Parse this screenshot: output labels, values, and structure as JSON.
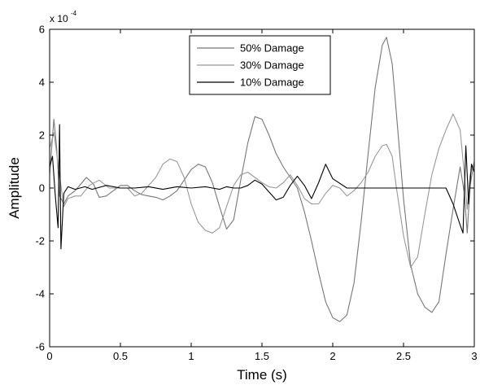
{
  "chart_data": {
    "type": "line",
    "xlabel": "Time (s)",
    "ylabel": "Amplitude",
    "xlim": [
      0,
      3
    ],
    "ylim": [
      -6,
      6
    ],
    "y_scale_base": "x 10",
    "y_scale_exponent": "-4",
    "xticks": [
      0,
      0.5,
      1,
      1.5,
      2,
      2.5,
      3
    ],
    "xtick_labels": [
      "0",
      "0.5",
      "1",
      "1.5",
      "2",
      "2.5",
      "3"
    ],
    "yticks": [
      -6,
      -4,
      -2,
      0,
      2,
      4,
      6
    ],
    "ytick_labels": [
      "-6",
      "-4",
      "-2",
      "0",
      "2",
      "4",
      "6"
    ],
    "legend_position": "top-center",
    "series": [
      {
        "name": "50% Damage",
        "color": "#777777",
        "x": [
          0,
          0.03,
          0.05,
          0.07,
          0.1,
          0.13,
          0.18,
          0.22,
          0.26,
          0.31,
          0.35,
          0.4,
          0.45,
          0.5,
          0.55,
          0.6,
          0.65,
          0.7,
          0.75,
          0.8,
          0.85,
          0.9,
          0.95,
          1.0,
          1.05,
          1.1,
          1.15,
          1.2,
          1.25,
          1.3,
          1.35,
          1.4,
          1.45,
          1.5,
          1.55,
          1.6,
          1.65,
          1.7,
          1.75,
          1.8,
          1.85,
          1.9,
          1.95,
          2.0,
          2.05,
          2.1,
          2.15,
          2.2,
          2.25,
          2.3,
          2.35,
          2.38,
          2.42,
          2.45,
          2.5,
          2.55,
          2.6,
          2.65,
          2.7,
          2.75,
          2.8,
          2.85,
          2.9,
          2.93,
          2.95,
          2.97,
          3.0
        ],
        "y": [
          0.5,
          2.6,
          1.5,
          -0.3,
          -0.6,
          -0.3,
          -0.1,
          0.15,
          0.4,
          0.15,
          -0.35,
          -0.3,
          -0.1,
          0.1,
          0.1,
          -0.1,
          -0.25,
          -0.3,
          -0.35,
          -0.45,
          -0.3,
          -0.1,
          0.3,
          0.7,
          0.9,
          0.8,
          0.2,
          -0.7,
          -1.55,
          -1.2,
          0.3,
          1.7,
          2.7,
          2.6,
          2.0,
          1.3,
          0.8,
          0.4,
          0.0,
          -0.9,
          -2.0,
          -3.2,
          -4.3,
          -4.9,
          -5.05,
          -4.8,
          -3.6,
          -1.3,
          1.3,
          3.8,
          5.4,
          5.7,
          4.7,
          2.8,
          -0.4,
          -2.9,
          -4.0,
          -4.5,
          -4.7,
          -4.3,
          -2.5,
          -0.8,
          0.8,
          -0.2,
          -1.7,
          0.1,
          1.0
        ]
      },
      {
        "name": "30% Damage",
        "color": "#999999",
        "x": [
          0,
          0.03,
          0.05,
          0.07,
          0.1,
          0.13,
          0.18,
          0.22,
          0.28,
          0.35,
          0.42,
          0.5,
          0.55,
          0.6,
          0.65,
          0.7,
          0.75,
          0.8,
          0.85,
          0.9,
          0.95,
          1.0,
          1.05,
          1.1,
          1.15,
          1.2,
          1.25,
          1.3,
          1.35,
          1.4,
          1.45,
          1.5,
          1.55,
          1.6,
          1.65,
          1.7,
          1.75,
          1.8,
          1.85,
          1.9,
          1.95,
          2.0,
          2.05,
          2.1,
          2.15,
          2.2,
          2.25,
          2.3,
          2.35,
          2.38,
          2.42,
          2.45,
          2.5,
          2.55,
          2.6,
          2.65,
          2.7,
          2.75,
          2.8,
          2.85,
          2.9,
          2.93,
          2.95,
          2.97,
          3.0
        ],
        "y": [
          1.5,
          2.1,
          1.3,
          0.5,
          -0.7,
          -0.4,
          -0.3,
          -0.3,
          0.1,
          0.3,
          0.0,
          0.0,
          0.0,
          -0.3,
          -0.2,
          0.1,
          0.4,
          0.9,
          1.1,
          1.0,
          0.4,
          -0.6,
          -1.3,
          -1.6,
          -1.7,
          -1.5,
          -0.7,
          0.1,
          0.5,
          0.6,
          0.4,
          0.2,
          0.05,
          0.0,
          0.2,
          0.5,
          0.1,
          -0.4,
          -0.6,
          -0.6,
          -0.2,
          0.1,
          0.0,
          -0.3,
          -0.1,
          0.2,
          0.6,
          1.2,
          1.6,
          1.65,
          1.2,
          0.0,
          -1.8,
          -3.0,
          -2.6,
          -1.0,
          0.5,
          1.5,
          2.2,
          2.8,
          2.2,
          0.5,
          -0.8,
          0.5,
          1.0
        ]
      },
      {
        "name": "10% Damage",
        "color": "#000000",
        "x": [
          0,
          0.02,
          0.04,
          0.06,
          0.07,
          0.08,
          0.1,
          0.13,
          0.18,
          0.25,
          0.3,
          0.4,
          0.5,
          0.6,
          0.7,
          0.8,
          0.9,
          1.0,
          1.1,
          1.15,
          1.2,
          1.25,
          1.3,
          1.35,
          1.4,
          1.45,
          1.5,
          1.55,
          1.6,
          1.65,
          1.7,
          1.75,
          1.8,
          1.85,
          1.9,
          1.95,
          2.0,
          2.1,
          2.2,
          2.3,
          2.4,
          2.5,
          2.6,
          2.7,
          2.8,
          2.85,
          2.9,
          2.92,
          2.94,
          2.96,
          2.98,
          3.0
        ],
        "y": [
          0.8,
          1.2,
          -0.3,
          -1.5,
          2.4,
          -2.3,
          -0.2,
          0.05,
          -0.05,
          0.05,
          -0.05,
          0.1,
          0.0,
          0.0,
          0.05,
          -0.05,
          0.05,
          0.0,
          0.05,
          0.0,
          -0.05,
          0.05,
          0.0,
          0.0,
          0.1,
          0.3,
          0.15,
          -0.15,
          -0.45,
          -0.35,
          0.1,
          0.45,
          0.1,
          -0.4,
          0.2,
          0.9,
          0.35,
          0.0,
          0.0,
          0.0,
          0.0,
          0.0,
          0.0,
          0.0,
          0.0,
          -0.6,
          -1.4,
          -1.7,
          1.6,
          -0.6,
          0.9,
          0.6
        ]
      }
    ]
  }
}
